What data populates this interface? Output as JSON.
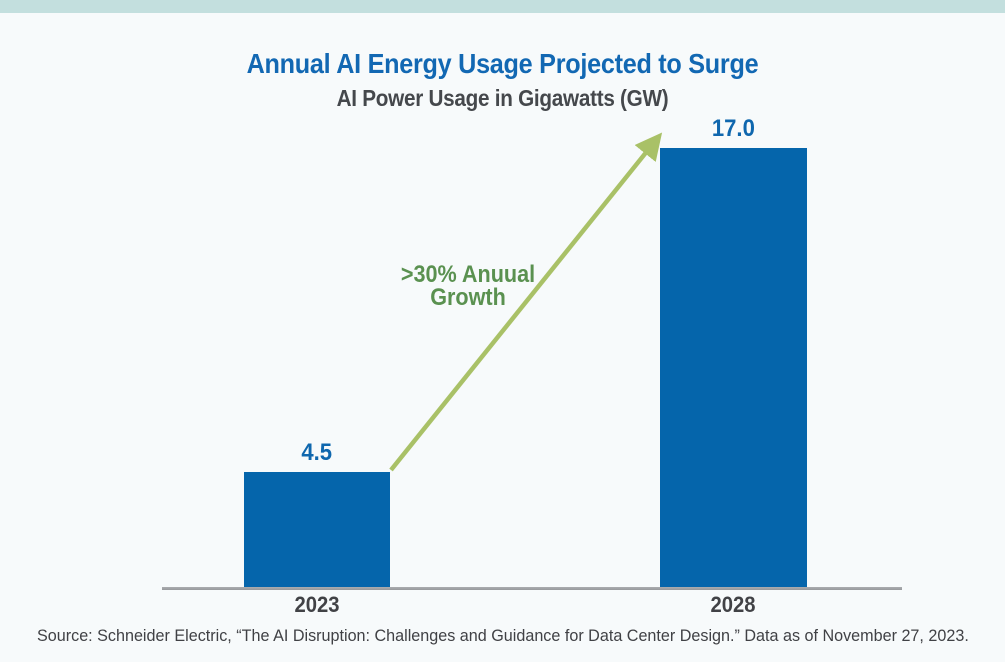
{
  "page": {
    "source_note": "Source: Schneider Electric, “The AI Disruption: Challenges and Guidance for Data Center Design.” Data as of November 27, 2023."
  },
  "chart_data": {
    "type": "bar",
    "title": "Annual AI Energy Usage Projected to Surge",
    "subtitle": "AI Power Usage in Gigawatts (GW)",
    "unit": "GW",
    "categories": [
      "2023",
      "2028"
    ],
    "values": [
      4.5,
      17.0
    ],
    "value_labels": [
      "4.5",
      "17.0"
    ],
    "ylim": [
      0,
      17
    ],
    "grid": false,
    "legend": false,
    "annotation": {
      "line1": ">30% Anuual",
      "line2": "Growth"
    }
  },
  "colors": {
    "band": "#c3dfde",
    "background": "#f7fafb",
    "title_blue": "#1268b3",
    "subtitle_gray": "#45484c",
    "bar_blue": "#0565ab",
    "value_blue": "#0f67ae",
    "axis_gray": "#aaacaf",
    "xlabel_gray": "#414246",
    "arrow_green": "#a9c167",
    "growth_green": "#5a9150",
    "source_gray": "#404145"
  }
}
